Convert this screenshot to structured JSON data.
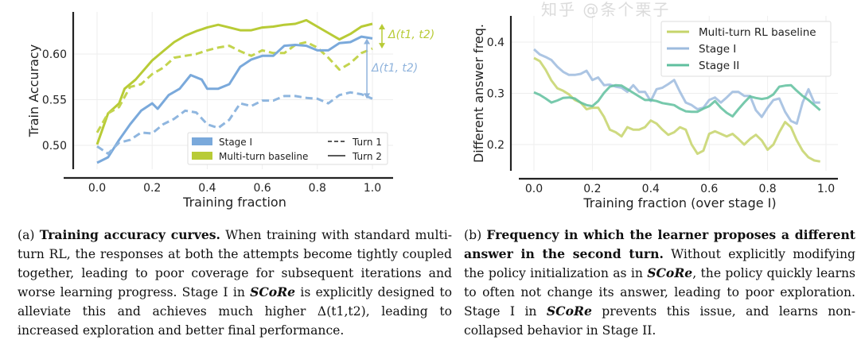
{
  "chart_data": [
    {
      "type": "line",
      "ylabel": "Train Accuracy",
      "xlabel": "Training fraction",
      "xlim": [
        -0.04,
        1.07
      ],
      "ylim": [
        0.474,
        0.646
      ],
      "xticks": [
        "0.0",
        "0.2",
        "0.4",
        "0.6",
        "0.8",
        "1.0"
      ],
      "yticks": [
        "0.50",
        "0.55",
        "0.60"
      ],
      "grid": true,
      "legend_placement": "lower-right",
      "legend": {
        "colors": [
          {
            "label": "Stage I",
            "color": "#7aa9db"
          },
          {
            "label": "Multi-turn baseline",
            "color": "#b8cb36"
          }
        ],
        "styles": [
          {
            "label": "Turn 1",
            "dash": "dashed"
          },
          {
            "label": "Turn 2",
            "dash": "solid"
          }
        ]
      },
      "annotations": [
        {
          "text": "Δ(t1, t2)",
          "color": "#b8cb36",
          "from": 0.633,
          "to": 0.606,
          "x": 1.0
        },
        {
          "text": "Δ(t1, t2)",
          "color": "#8fb3dc",
          "from": 0.617,
          "to": 0.551,
          "x": 0.98
        }
      ],
      "series": [
        {
          "group": "Multi-turn baseline",
          "turn": "Turn 2",
          "color": "#b8cb36",
          "dash": "solid",
          "x": [
            0,
            0.04,
            0.08,
            0.1,
            0.14,
            0.2,
            0.24,
            0.28,
            0.32,
            0.36,
            0.4,
            0.44,
            0.48,
            0.52,
            0.56,
            0.6,
            0.64,
            0.68,
            0.72,
            0.76,
            0.8,
            0.84,
            0.88,
            0.92,
            0.96,
            1.0
          ],
          "y": [
            0.501,
            0.535,
            0.546,
            0.562,
            0.572,
            0.593,
            0.603,
            0.613,
            0.62,
            0.625,
            0.629,
            0.632,
            0.629,
            0.626,
            0.626,
            0.629,
            0.63,
            0.632,
            0.633,
            0.637,
            0.63,
            0.623,
            0.616,
            0.622,
            0.63,
            0.633
          ]
        },
        {
          "group": "Multi-turn baseline",
          "turn": "Turn 1",
          "color": "#c3d44e",
          "dash": "dashed",
          "x": [
            0,
            0.04,
            0.08,
            0.12,
            0.16,
            0.2,
            0.24,
            0.28,
            0.32,
            0.36,
            0.4,
            0.44,
            0.48,
            0.52,
            0.56,
            0.6,
            0.64,
            0.68,
            0.72,
            0.76,
            0.8,
            0.84,
            0.88,
            0.92,
            0.96,
            1.0
          ],
          "y": [
            0.514,
            0.535,
            0.542,
            0.564,
            0.567,
            0.578,
            0.585,
            0.596,
            0.598,
            0.6,
            0.604,
            0.607,
            0.609,
            0.603,
            0.598,
            0.604,
            0.601,
            0.601,
            0.61,
            0.613,
            0.607,
            0.596,
            0.583,
            0.59,
            0.601,
            0.606
          ]
        },
        {
          "group": "Stage I",
          "turn": "Turn 2",
          "color": "#7aa9db",
          "dash": "solid",
          "x": [
            0,
            0.04,
            0.08,
            0.12,
            0.16,
            0.2,
            0.22,
            0.26,
            0.3,
            0.34,
            0.38,
            0.4,
            0.44,
            0.48,
            0.52,
            0.56,
            0.6,
            0.64,
            0.68,
            0.72,
            0.76,
            0.8,
            0.84,
            0.88,
            0.92,
            0.96,
            1.0
          ],
          "y": [
            0.481,
            0.487,
            0.506,
            0.523,
            0.538,
            0.546,
            0.54,
            0.555,
            0.562,
            0.577,
            0.572,
            0.562,
            0.562,
            0.567,
            0.586,
            0.594,
            0.598,
            0.598,
            0.609,
            0.61,
            0.609,
            0.604,
            0.604,
            0.612,
            0.613,
            0.619,
            0.617
          ]
        },
        {
          "group": "Stage I",
          "turn": "Turn 1",
          "color": "#8fb6df",
          "dash": "dashed",
          "x": [
            0,
            0.04,
            0.08,
            0.12,
            0.16,
            0.2,
            0.24,
            0.28,
            0.32,
            0.36,
            0.4,
            0.44,
            0.48,
            0.52,
            0.56,
            0.6,
            0.64,
            0.68,
            0.72,
            0.76,
            0.8,
            0.84,
            0.88,
            0.92,
            0.96,
            1.0
          ],
          "y": [
            0.499,
            0.491,
            0.503,
            0.506,
            0.514,
            0.513,
            0.523,
            0.529,
            0.538,
            0.536,
            0.523,
            0.519,
            0.528,
            0.546,
            0.543,
            0.549,
            0.549,
            0.554,
            0.554,
            0.552,
            0.551,
            0.546,
            0.555,
            0.558,
            0.556,
            0.551
          ]
        }
      ]
    },
    {
      "type": "line",
      "ylabel": "Different answer freq.",
      "xlabel": "Training fraction (over stage I)",
      "xlim": [
        -0.05,
        1.05
      ],
      "ylim": [
        0.149,
        0.451
      ],
      "xticks": [
        "0.0",
        "0.2",
        "0.4",
        "0.6",
        "0.8",
        "1.0"
      ],
      "yticks": [
        "0.2",
        "0.3",
        "0.4"
      ],
      "grid": true,
      "legend_placement": "upper-right",
      "series": [
        {
          "name": "Multi-turn RL baseline",
          "color": "#c6d46a",
          "y": [
            0.369,
            0.363,
            0.346,
            0.325,
            0.31,
            0.305,
            0.298,
            0.287,
            0.282,
            0.269,
            0.272,
            0.272,
            0.254,
            0.229,
            0.224,
            0.216,
            0.234,
            0.229,
            0.229,
            0.234,
            0.247,
            0.241,
            0.229,
            0.219,
            0.224,
            0.234,
            0.229,
            0.2,
            0.182,
            0.188,
            0.221,
            0.226,
            0.221,
            0.216,
            0.221,
            0.211,
            0.2,
            0.211,
            0.219,
            0.208,
            0.19,
            0.2,
            0.224,
            0.244,
            0.234,
            0.208,
            0.188,
            0.175,
            0.169,
            0.167
          ]
        },
        {
          "name": "Stage I",
          "color": "#9dbbde",
          "y": [
            0.386,
            0.376,
            0.371,
            0.365,
            0.352,
            0.342,
            0.336,
            0.336,
            0.338,
            0.344,
            0.326,
            0.331,
            0.316,
            0.317,
            0.313,
            0.311,
            0.303,
            0.316,
            0.303,
            0.303,
            0.285,
            0.308,
            0.311,
            0.318,
            0.326,
            0.303,
            0.282,
            0.277,
            0.269,
            0.272,
            0.287,
            0.292,
            0.282,
            0.292,
            0.303,
            0.303,
            0.295,
            0.295,
            0.267,
            0.254,
            0.272,
            0.287,
            0.29,
            0.264,
            0.246,
            0.241,
            0.282,
            0.308,
            0.282,
            0.282
          ]
        },
        {
          "name": "Stage II",
          "color": "#5fbf9e",
          "y": [
            0.302,
            0.297,
            0.29,
            0.282,
            0.286,
            0.291,
            0.292,
            0.29,
            0.282,
            0.277,
            0.275,
            0.285,
            0.301,
            0.313,
            0.316,
            0.315,
            0.308,
            0.301,
            0.294,
            0.287,
            0.287,
            0.285,
            0.281,
            0.279,
            0.277,
            0.27,
            0.265,
            0.264,
            0.264,
            0.27,
            0.275,
            0.285,
            0.272,
            0.262,
            0.255,
            0.269,
            0.282,
            0.294,
            0.291,
            0.289,
            0.291,
            0.298,
            0.313,
            0.315,
            0.316,
            0.305,
            0.295,
            0.287,
            0.277,
            0.267
          ]
        }
      ],
      "x_step": 0.02
    }
  ],
  "captions": {
    "a": {
      "label": "(a)",
      "bold": "Training accuracy curves.",
      "t1": " When training with standard multi-turn RL, the responses at both the attempts become tightly coupled together, leading to poor coverage for subsequent iterations and worse learning progress. Stage I in ",
      "em": "SCoRe",
      "t2": " is explicitly designed to alleviate this and achieves much higher Δ(t1,t2), leading to increased exploration and better final performance."
    },
    "b": {
      "label": "(b)",
      "bold": "Frequency in which the learner proposes a different answer in the second turn.",
      "t1": " Without explicitly modifying the policy initialization as in ",
      "em1": "SCoRe",
      "t2": ", the policy quickly learns to often not change its answer, leading to poor exploration. Stage I in ",
      "em2": "SCoRe",
      "t3": " prevents this issue, and learns non-collapsed behavior in Stage II."
    }
  },
  "watermark": "知乎 @条个栗子"
}
